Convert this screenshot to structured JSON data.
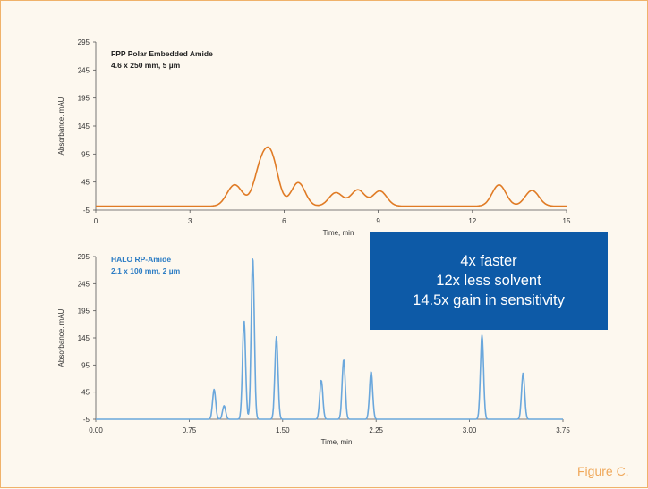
{
  "chart_data": [
    {
      "type": "line",
      "title": "FPP Polar Embedded Amide",
      "subtitle": "4.6 x 250 mm, 5 µm",
      "xlabel": "Time, min",
      "ylabel": "Absorbance, mAU",
      "xlim": [
        0,
        15
      ],
      "ylim": [
        -5,
        295
      ],
      "xticks": [
        "0",
        "3",
        "6",
        "9",
        "12",
        "15"
      ],
      "xtick_values": [
        0,
        3,
        6,
        9,
        12,
        15
      ],
      "yticks": [
        "-5",
        "45",
        "95",
        "145",
        "195",
        "245",
        "295"
      ],
      "ytick_values": [
        -5,
        45,
        95,
        145,
        195,
        245,
        295
      ],
      "baseline": 7,
      "color": "#e07b25",
      "peaks": [
        {
          "t": 4.35,
          "h": 25
        },
        {
          "t": 4.55,
          "h": 17
        },
        {
          "t": 5.25,
          "h": 63
        },
        {
          "t": 5.6,
          "h": 80
        },
        {
          "t": 6.45,
          "h": 42
        },
        {
          "t": 7.65,
          "h": 24
        },
        {
          "t": 8.35,
          "h": 29
        },
        {
          "t": 9.05,
          "h": 27
        },
        {
          "t": 12.85,
          "h": 38
        },
        {
          "t": 13.9,
          "h": 28
        }
      ]
    },
    {
      "type": "line",
      "title": "HALO RP-Amide",
      "subtitle": "2.1 x 100 mm, 2 µm",
      "xlabel": "Time, min",
      "ylabel": "Absorbance, mAU",
      "xlim": [
        0,
        3.75
      ],
      "ylim": [
        -5,
        295
      ],
      "xticks": [
        "0.00",
        "0.75",
        "1.50",
        "2.25",
        "3.00",
        "3.75"
      ],
      "xtick_values": [
        0,
        0.75,
        1.5,
        2.25,
        3.0,
        3.75
      ],
      "yticks": [
        "-5",
        "45",
        "95",
        "145",
        "195",
        "245",
        "295"
      ],
      "ytick_values": [
        -5,
        45,
        95,
        145,
        195,
        245,
        295
      ],
      "baseline": 0,
      "color": "#6aa7dc",
      "peaks": [
        {
          "t": 0.95,
          "h": 55
        },
        {
          "t": 1.03,
          "h": 25
        },
        {
          "t": 1.19,
          "h": 182
        },
        {
          "t": 1.26,
          "h": 298
        },
        {
          "t": 1.45,
          "h": 152
        },
        {
          "t": 1.81,
          "h": 72
        },
        {
          "t": 1.99,
          "h": 110
        },
        {
          "t": 2.21,
          "h": 88
        },
        {
          "t": 3.1,
          "h": 155
        },
        {
          "t": 3.43,
          "h": 85
        }
      ]
    }
  ],
  "callout": {
    "line1": "4x faster",
    "line2": "12x less solvent",
    "line3": "14.5x gain in sensitivity"
  },
  "caption": "Figure C."
}
